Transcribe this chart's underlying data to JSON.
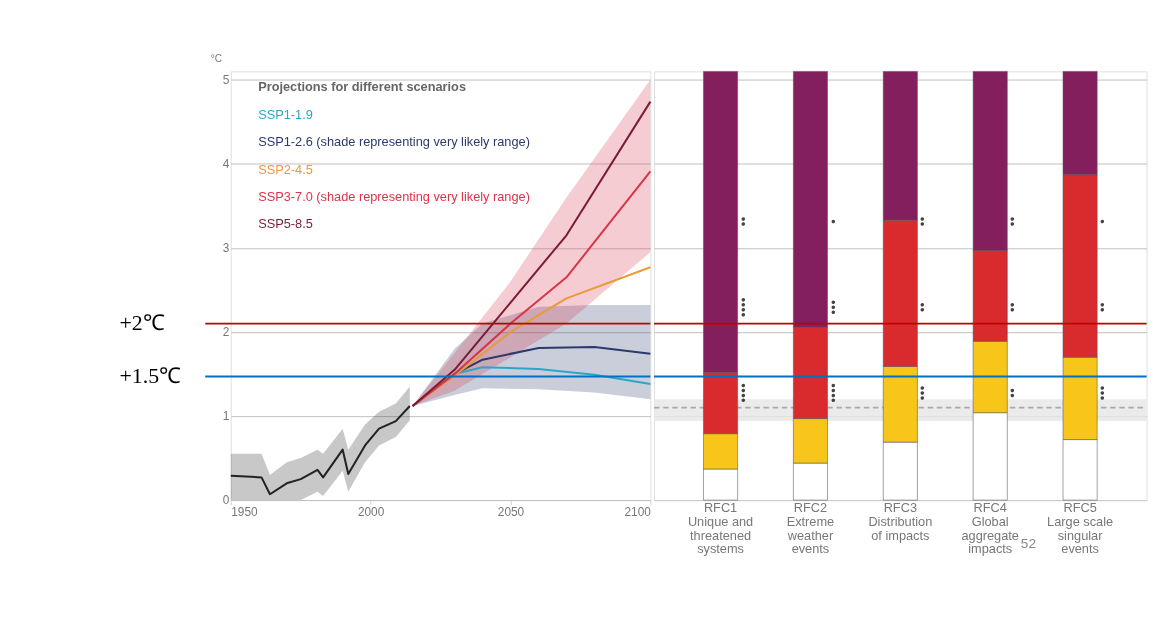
{
  "chart_data": [
    {
      "type": "line",
      "ylabel": "°C",
      "xlim": [
        1950,
        2100
      ],
      "ylim": [
        0,
        5.1
      ],
      "xticks": [
        1950,
        2000,
        2050,
        2100
      ],
      "yticks": [
        0,
        1,
        2,
        3,
        4,
        5
      ],
      "grid": "y",
      "legend": "top left",
      "legend_title": "Projections for different scenarios",
      "series": [
        {
          "color": "#222222",
          "x": [
            1950,
            1961,
            1964,
            1970,
            1975,
            1981,
            1983,
            1990,
            1992,
            1998,
            2003,
            2009,
            2014
          ],
          "values": [
            0.29,
            0.27,
            0.07,
            0.2,
            0.25,
            0.36,
            0.27,
            0.6,
            0.31,
            0.65,
            0.85,
            0.94,
            1.12
          ],
          "lower": [
            0.0,
            0.0,
            0.0,
            0.0,
            0.0,
            0.1,
            0.05,
            0.35,
            0.1,
            0.45,
            0.65,
            0.75,
            0.95
          ],
          "upper": [
            0.55,
            0.55,
            0.3,
            0.45,
            0.5,
            0.6,
            0.55,
            0.85,
            0.6,
            0.9,
            1.05,
            1.15,
            1.35
          ]
        },
        {
          "name": "SSP1-1.9",
          "color": "#2aa7c7",
          "x": [
            2015,
            2030,
            2040,
            2060,
            2080,
            2100
          ],
          "values": [
            1.12,
            1.5,
            1.58,
            1.56,
            1.49,
            1.38
          ]
        },
        {
          "name": "SSP1-2.6 (shade representing very likely range)",
          "color": "#2b3a6b",
          "x": [
            2015,
            2030,
            2040,
            2060,
            2080,
            2100
          ],
          "values": [
            1.12,
            1.5,
            1.67,
            1.81,
            1.82,
            1.74
          ],
          "lower": [
            1.12,
            1.25,
            1.33,
            1.32,
            1.28,
            1.2
          ],
          "upper": [
            1.12,
            1.8,
            2.1,
            2.3,
            2.32,
            2.32
          ]
        },
        {
          "name": "SSP2-4.5",
          "color": "#e99a3a",
          "x": [
            2015,
            2030,
            2050,
            2070,
            2100
          ],
          "values": [
            1.12,
            1.48,
            2.0,
            2.4,
            2.77
          ]
        },
        {
          "name": "SSP3-7.0 (shade representing very likely range)",
          "color": "#d9344a",
          "x": [
            2015,
            2030,
            2050,
            2070,
            2100
          ],
          "values": [
            1.12,
            1.5,
            2.1,
            2.65,
            3.91
          ],
          "lower": [
            1.12,
            1.3,
            1.7,
            2.1,
            2.95
          ],
          "upper": [
            1.12,
            1.75,
            2.6,
            3.6,
            5.0
          ]
        },
        {
          "name": "SSP5-8.5",
          "color": "#7b1c34",
          "x": [
            2015,
            2030,
            2050,
            2070,
            2100
          ],
          "values": [
            1.12,
            1.55,
            2.35,
            3.15,
            4.74
          ]
        }
      ],
      "ref_lines": [
        {
          "axis": "y",
          "value": 2.1,
          "label": "+2℃",
          "color": "#c00000"
        },
        {
          "axis": "y",
          "value": 1.47,
          "label": "+1.5℃",
          "color": "#0070c0"
        }
      ]
    },
    {
      "type": "bar",
      "stacked": true,
      "ylim": [
        0,
        5.1
      ],
      "yticks": [
        0,
        1,
        2,
        3,
        4,
        5
      ],
      "grid": "y",
      "tick_labels": "x",
      "categories": [
        "RFC1\nUnique and\nthreatened\nsystems",
        "RFC2\nExtreme\nweather\nevents",
        "RFC3\nDistribution\nof impacts",
        "RFC4\nGlobal\naggregate\nimpacts",
        "RFC5\nLarge scale\nsingular\nevents"
      ],
      "series": [
        {
          "color": "#ffffff",
          "values": [
            0.37,
            0.44,
            0.69,
            1.04,
            0.72
          ]
        },
        {
          "color": "#f8c51a",
          "values": [
            0.42,
            0.53,
            0.9,
            0.85,
            0.98
          ]
        },
        {
          "color": "#d92b2e",
          "values": [
            0.73,
            1.09,
            1.74,
            1.08,
            2.17
          ]
        },
        {
          "color": "#841f5e",
          "values": [
            3.58,
            3.04,
            1.77,
            2.13,
            1.23
          ]
        }
      ],
      "bands": [
        {
          "axis": "y",
          "from": 0.94,
          "to": 1.2,
          "color": "#e6e6e6"
        }
      ],
      "ref_lines": [
        {
          "axis": "y",
          "value": 1.1,
          "color": "#aaaaaa",
          "line_style": "dashed"
        },
        {
          "axis": "y",
          "value": 2.1,
          "color": "#c00000"
        },
        {
          "axis": "y",
          "value": 1.47,
          "color": "#0070c0"
        }
      ],
      "annotations": [
        "●●",
        "●●●●",
        "●●●●",
        "●",
        "●●●",
        "●●●●",
        "●●",
        "●●",
        "●●●",
        "●●",
        "●●",
        "●●",
        "●",
        "●●",
        "●●●",
        "52"
      ]
    }
  ]
}
